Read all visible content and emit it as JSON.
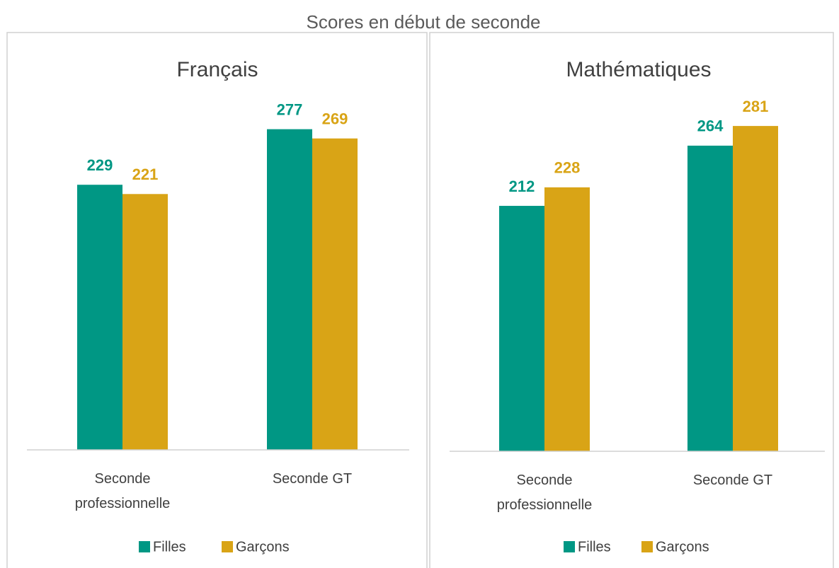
{
  "title": "Scores en début de seconde",
  "chart_data": [
    {
      "type": "bar",
      "title": "Français",
      "categories": [
        "Seconde professionnelle",
        "Seconde GT"
      ],
      "series": [
        {
          "name": "Filles",
          "color": "#009784",
          "values": [
            229,
            277
          ]
        },
        {
          "name": "Garçons",
          "color": "#d9a416",
          "values": [
            221,
            269
          ]
        }
      ],
      "ylim": [
        0,
        300
      ],
      "legend": "bottom"
    },
    {
      "type": "bar",
      "title": "Mathématiques",
      "categories": [
        "Seconde professionnelle",
        "Seconde GT"
      ],
      "series": [
        {
          "name": "Filles",
          "color": "#009784",
          "values": [
            212,
            264
          ]
        },
        {
          "name": "Garçons",
          "color": "#d9a416",
          "values": [
            228,
            281
          ]
        }
      ],
      "ylim": [
        0,
        300
      ],
      "legend": "bottom"
    }
  ]
}
